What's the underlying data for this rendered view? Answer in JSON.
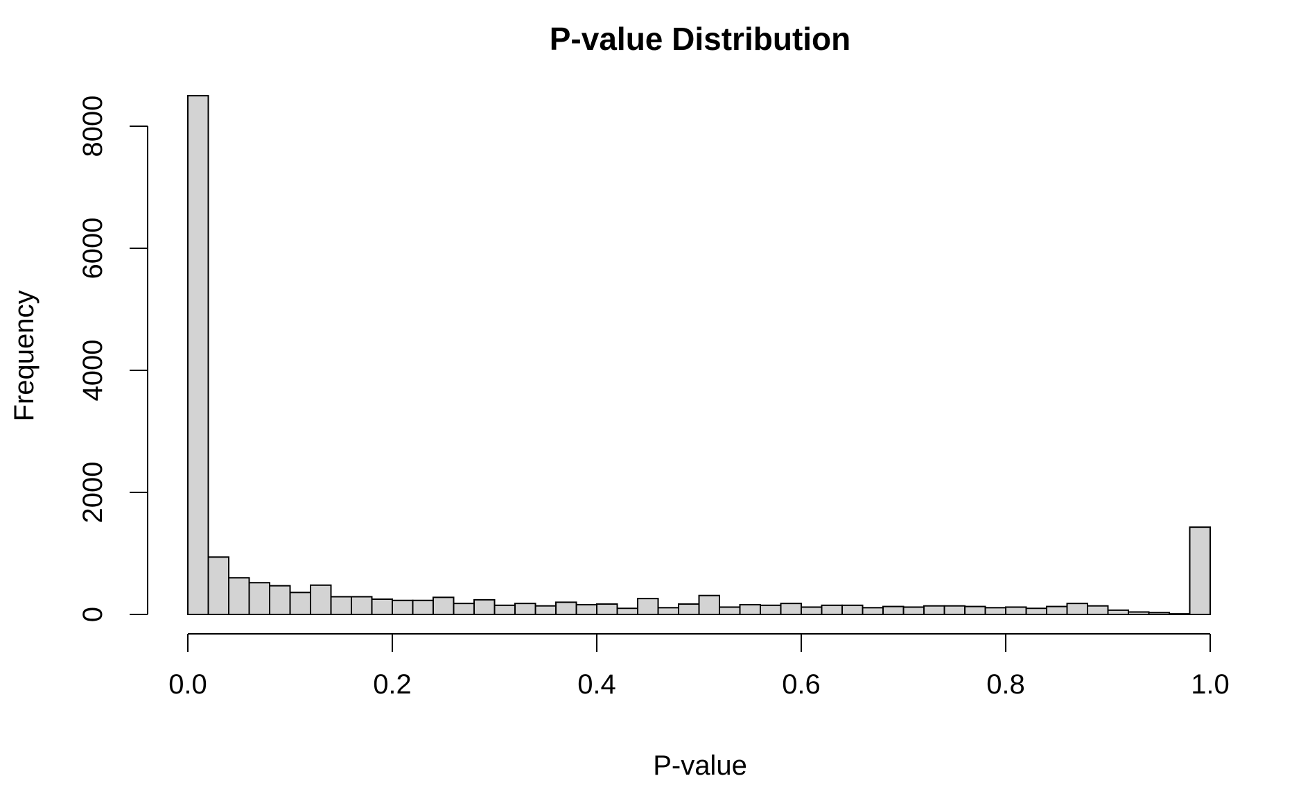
{
  "chart_data": {
    "type": "bar",
    "title": "P-value Distribution",
    "xlabel": "P-value",
    "ylabel": "Frequency",
    "bin_width": 0.02,
    "xlim": [
      0,
      1
    ],
    "ylim": [
      0,
      8500
    ],
    "x_ticks": [
      0.0,
      0.2,
      0.4,
      0.6,
      0.8,
      1.0
    ],
    "x_tick_labels": [
      "0.0",
      "0.2",
      "0.4",
      "0.6",
      "0.8",
      "1.0"
    ],
    "y_ticks": [
      0,
      2000,
      4000,
      6000,
      8000
    ],
    "y_tick_labels": [
      "0",
      "2000",
      "4000",
      "6000",
      "8000"
    ],
    "bin_starts": [
      0.0,
      0.02,
      0.04,
      0.06,
      0.08,
      0.1,
      0.12,
      0.14,
      0.16,
      0.18,
      0.2,
      0.22,
      0.24,
      0.26,
      0.28,
      0.3,
      0.32,
      0.34,
      0.36,
      0.38,
      0.4,
      0.42,
      0.44,
      0.46,
      0.48,
      0.5,
      0.52,
      0.54,
      0.56,
      0.58,
      0.6,
      0.62,
      0.64,
      0.66,
      0.68,
      0.7,
      0.72,
      0.74,
      0.76,
      0.78,
      0.8,
      0.82,
      0.84,
      0.86,
      0.88,
      0.9,
      0.92,
      0.94,
      0.96,
      0.98
    ],
    "values": [
      8500,
      940,
      600,
      520,
      470,
      360,
      480,
      290,
      290,
      250,
      230,
      230,
      280,
      180,
      240,
      150,
      180,
      140,
      200,
      160,
      170,
      100,
      260,
      110,
      170,
      310,
      120,
      160,
      150,
      180,
      120,
      150,
      150,
      110,
      130,
      120,
      140,
      140,
      130,
      110,
      120,
      100,
      130,
      180,
      140,
      70,
      40,
      30,
      10,
      1430
    ],
    "bar_color": "#d3d3d3",
    "bar_edge_color": "#000000",
    "grid": false,
    "legend": "none"
  }
}
